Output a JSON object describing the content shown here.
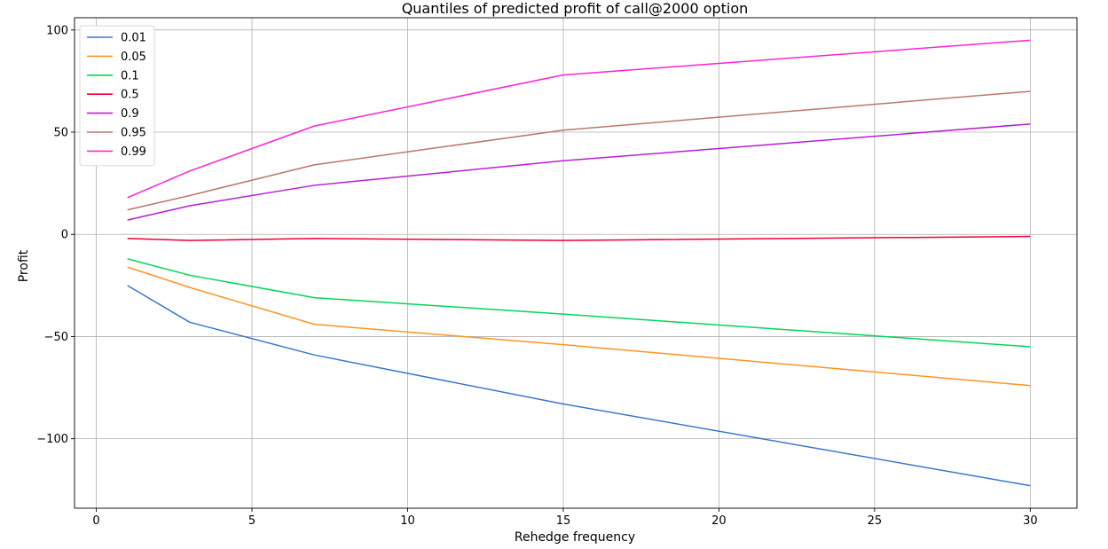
{
  "chart_data": {
    "type": "line",
    "title": "Quantiles of predicted profit of call@2000 option",
    "xlabel": "Rehedge frequency",
    "ylabel": "Profit",
    "xlim": [
      -0.7,
      31.5
    ],
    "ylim": [
      -134,
      106
    ],
    "xticks": [
      0,
      5,
      10,
      15,
      20,
      25,
      30
    ],
    "yticks": [
      -100,
      -50,
      0,
      50,
      100
    ],
    "xtick_labels": [
      "0",
      "5",
      "10",
      "15",
      "20",
      "25",
      "30"
    ],
    "ytick_labels": [
      "−100",
      "−50",
      "0",
      "50",
      "100"
    ],
    "grid": true,
    "legend_position": "top-left",
    "x": [
      1,
      3,
      7,
      15,
      30
    ],
    "series": [
      {
        "name": "0.01",
        "color": "#3a78c9",
        "values": [
          -25,
          -43,
          -59,
          -83,
          -123
        ]
      },
      {
        "name": "0.05",
        "color": "#ff9421",
        "values": [
          -16,
          -26,
          -44,
          -54,
          -74
        ]
      },
      {
        "name": "0.1",
        "color": "#00d65a",
        "values": [
          -12,
          -20,
          -31,
          -39,
          -55
        ]
      },
      {
        "name": "0.5",
        "color": "#ee0033",
        "values": [
          -2,
          -3,
          -2,
          -3,
          -1
        ]
      },
      {
        "name": "0.9",
        "color": "#b71ed6",
        "values": [
          7,
          14,
          24,
          36,
          54
        ]
      },
      {
        "name": "0.95",
        "color": "#b8786a",
        "values": [
          12,
          19,
          34,
          51,
          70
        ]
      },
      {
        "name": "0.99",
        "color": "#ff22d6",
        "values": [
          18,
          31,
          53,
          78,
          95
        ]
      }
    ]
  }
}
